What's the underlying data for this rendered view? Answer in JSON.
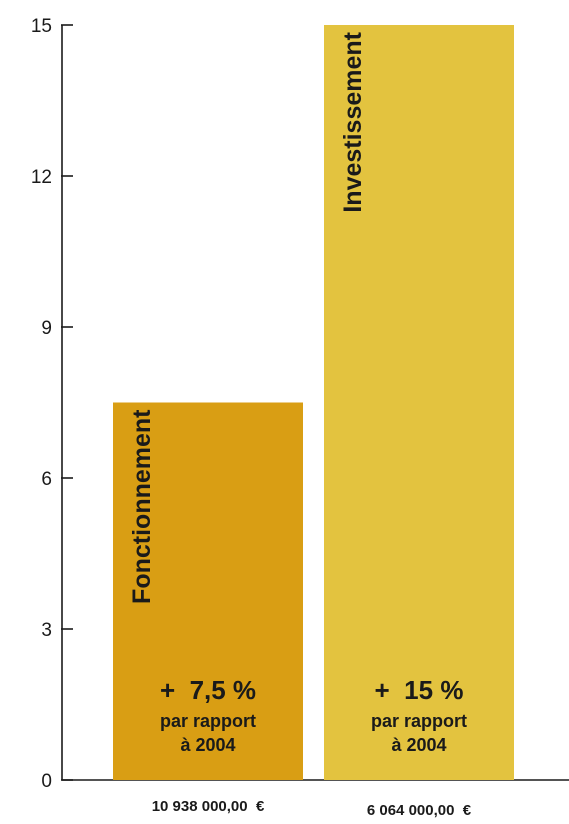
{
  "chart_data": {
    "type": "bar",
    "title": "",
    "xlabel": "",
    "ylabel": "",
    "ylim": [
      0,
      15
    ],
    "yticks": [
      "0",
      "3",
      "6",
      "9",
      "12",
      "15"
    ],
    "grid": false,
    "legend": "none",
    "bars": [
      {
        "name": "Fonctionnement",
        "value": 7.5,
        "pct_label": "+  7,5 %",
        "ref_line1": "par rapport",
        "ref_line2": "à 2004",
        "amount": "10 938 000,00  €",
        "color": "#D99E14"
      },
      {
        "name": "Investissement",
        "value": 15,
        "pct_label": "+  15 %",
        "ref_line1": "par rapport",
        "ref_line2": "à 2004",
        "amount": "6 064 000,00  €",
        "color": "#E3C33F"
      }
    ]
  }
}
